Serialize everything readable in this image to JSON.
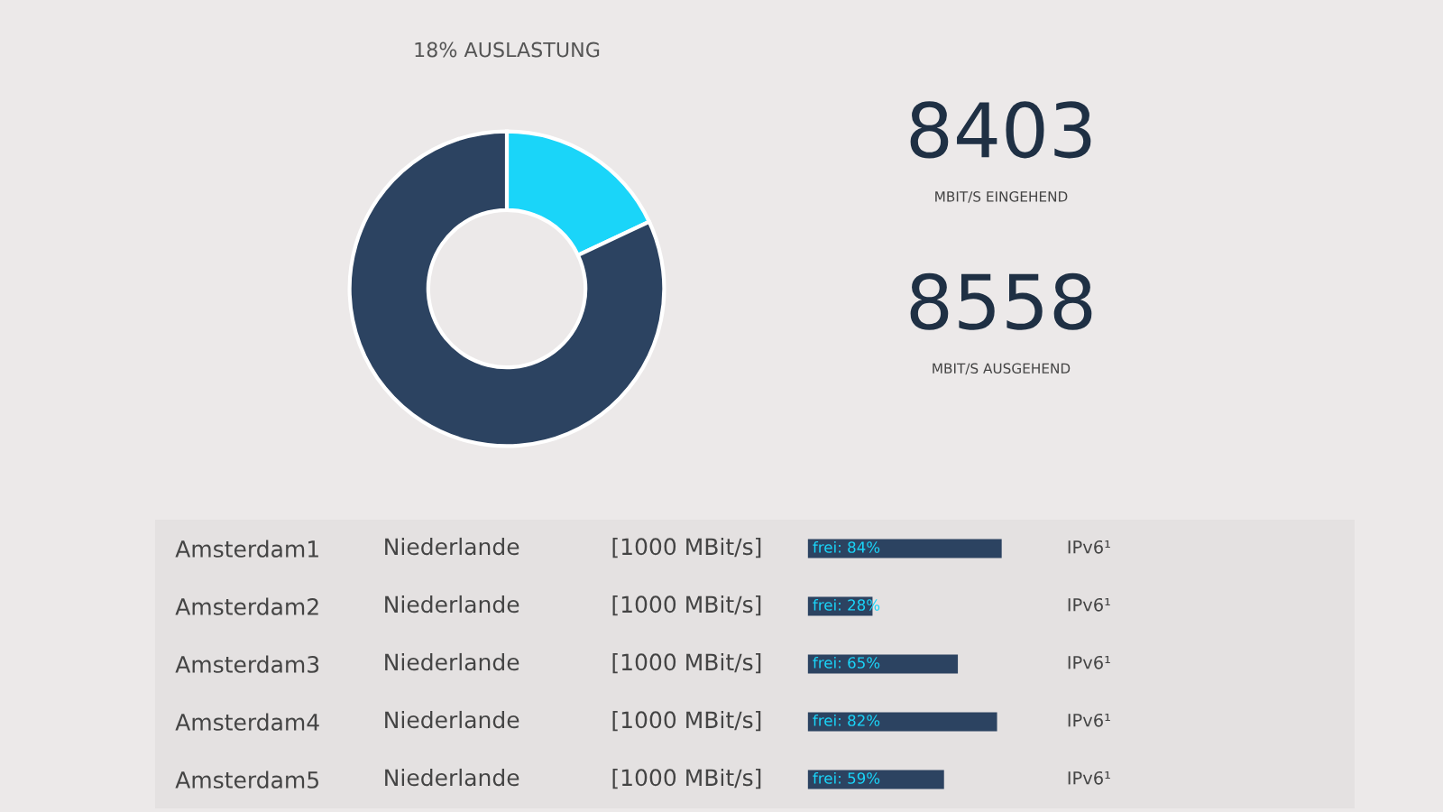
{
  "chart_data": [
    {
      "type": "donut",
      "title": "18% AUSLASTUNG",
      "categories": [
        null,
        null
      ],
      "values": [
        18,
        82
      ],
      "colors": [
        "#1ad5f9",
        "#2c4361"
      ]
    },
    {
      "type": "other",
      "annotations": [
        "8403",
        "MBIT/S EINGEHEND",
        "8558",
        "MBIT/S AUSGEHEND"
      ]
    },
    {
      "type": "bar",
      "orientation": "horizontal",
      "categories": [
        "Amsterdam1",
        "Amsterdam2",
        "Amsterdam3",
        "Amsterdam4",
        "Amsterdam5"
      ],
      "values": [
        84,
        28,
        65,
        82,
        59
      ],
      "color": "#2c4361",
      "value_labels": [
        "frei: 84%",
        "frei: 28%",
        "frei: 65%",
        "frei: 82%",
        "frei: 59%"
      ],
      "xlim": [
        -283,
        237
      ],
      "tick_labels": "y",
      "annotations": [
        "Niederlande",
        "[1000 MBit/s]",
        "IPv6¹",
        "Niederlande",
        "[1000 MBit/s]",
        "IPv6¹",
        "Niederlande",
        "[1000 MBit/s]",
        "IPv6¹",
        "Niederlande",
        "[1000 MBit/s]",
        "IPv6¹",
        "Niederlande",
        "[1000 MBit/s]",
        "IPv6¹"
      ]
    }
  ]
}
